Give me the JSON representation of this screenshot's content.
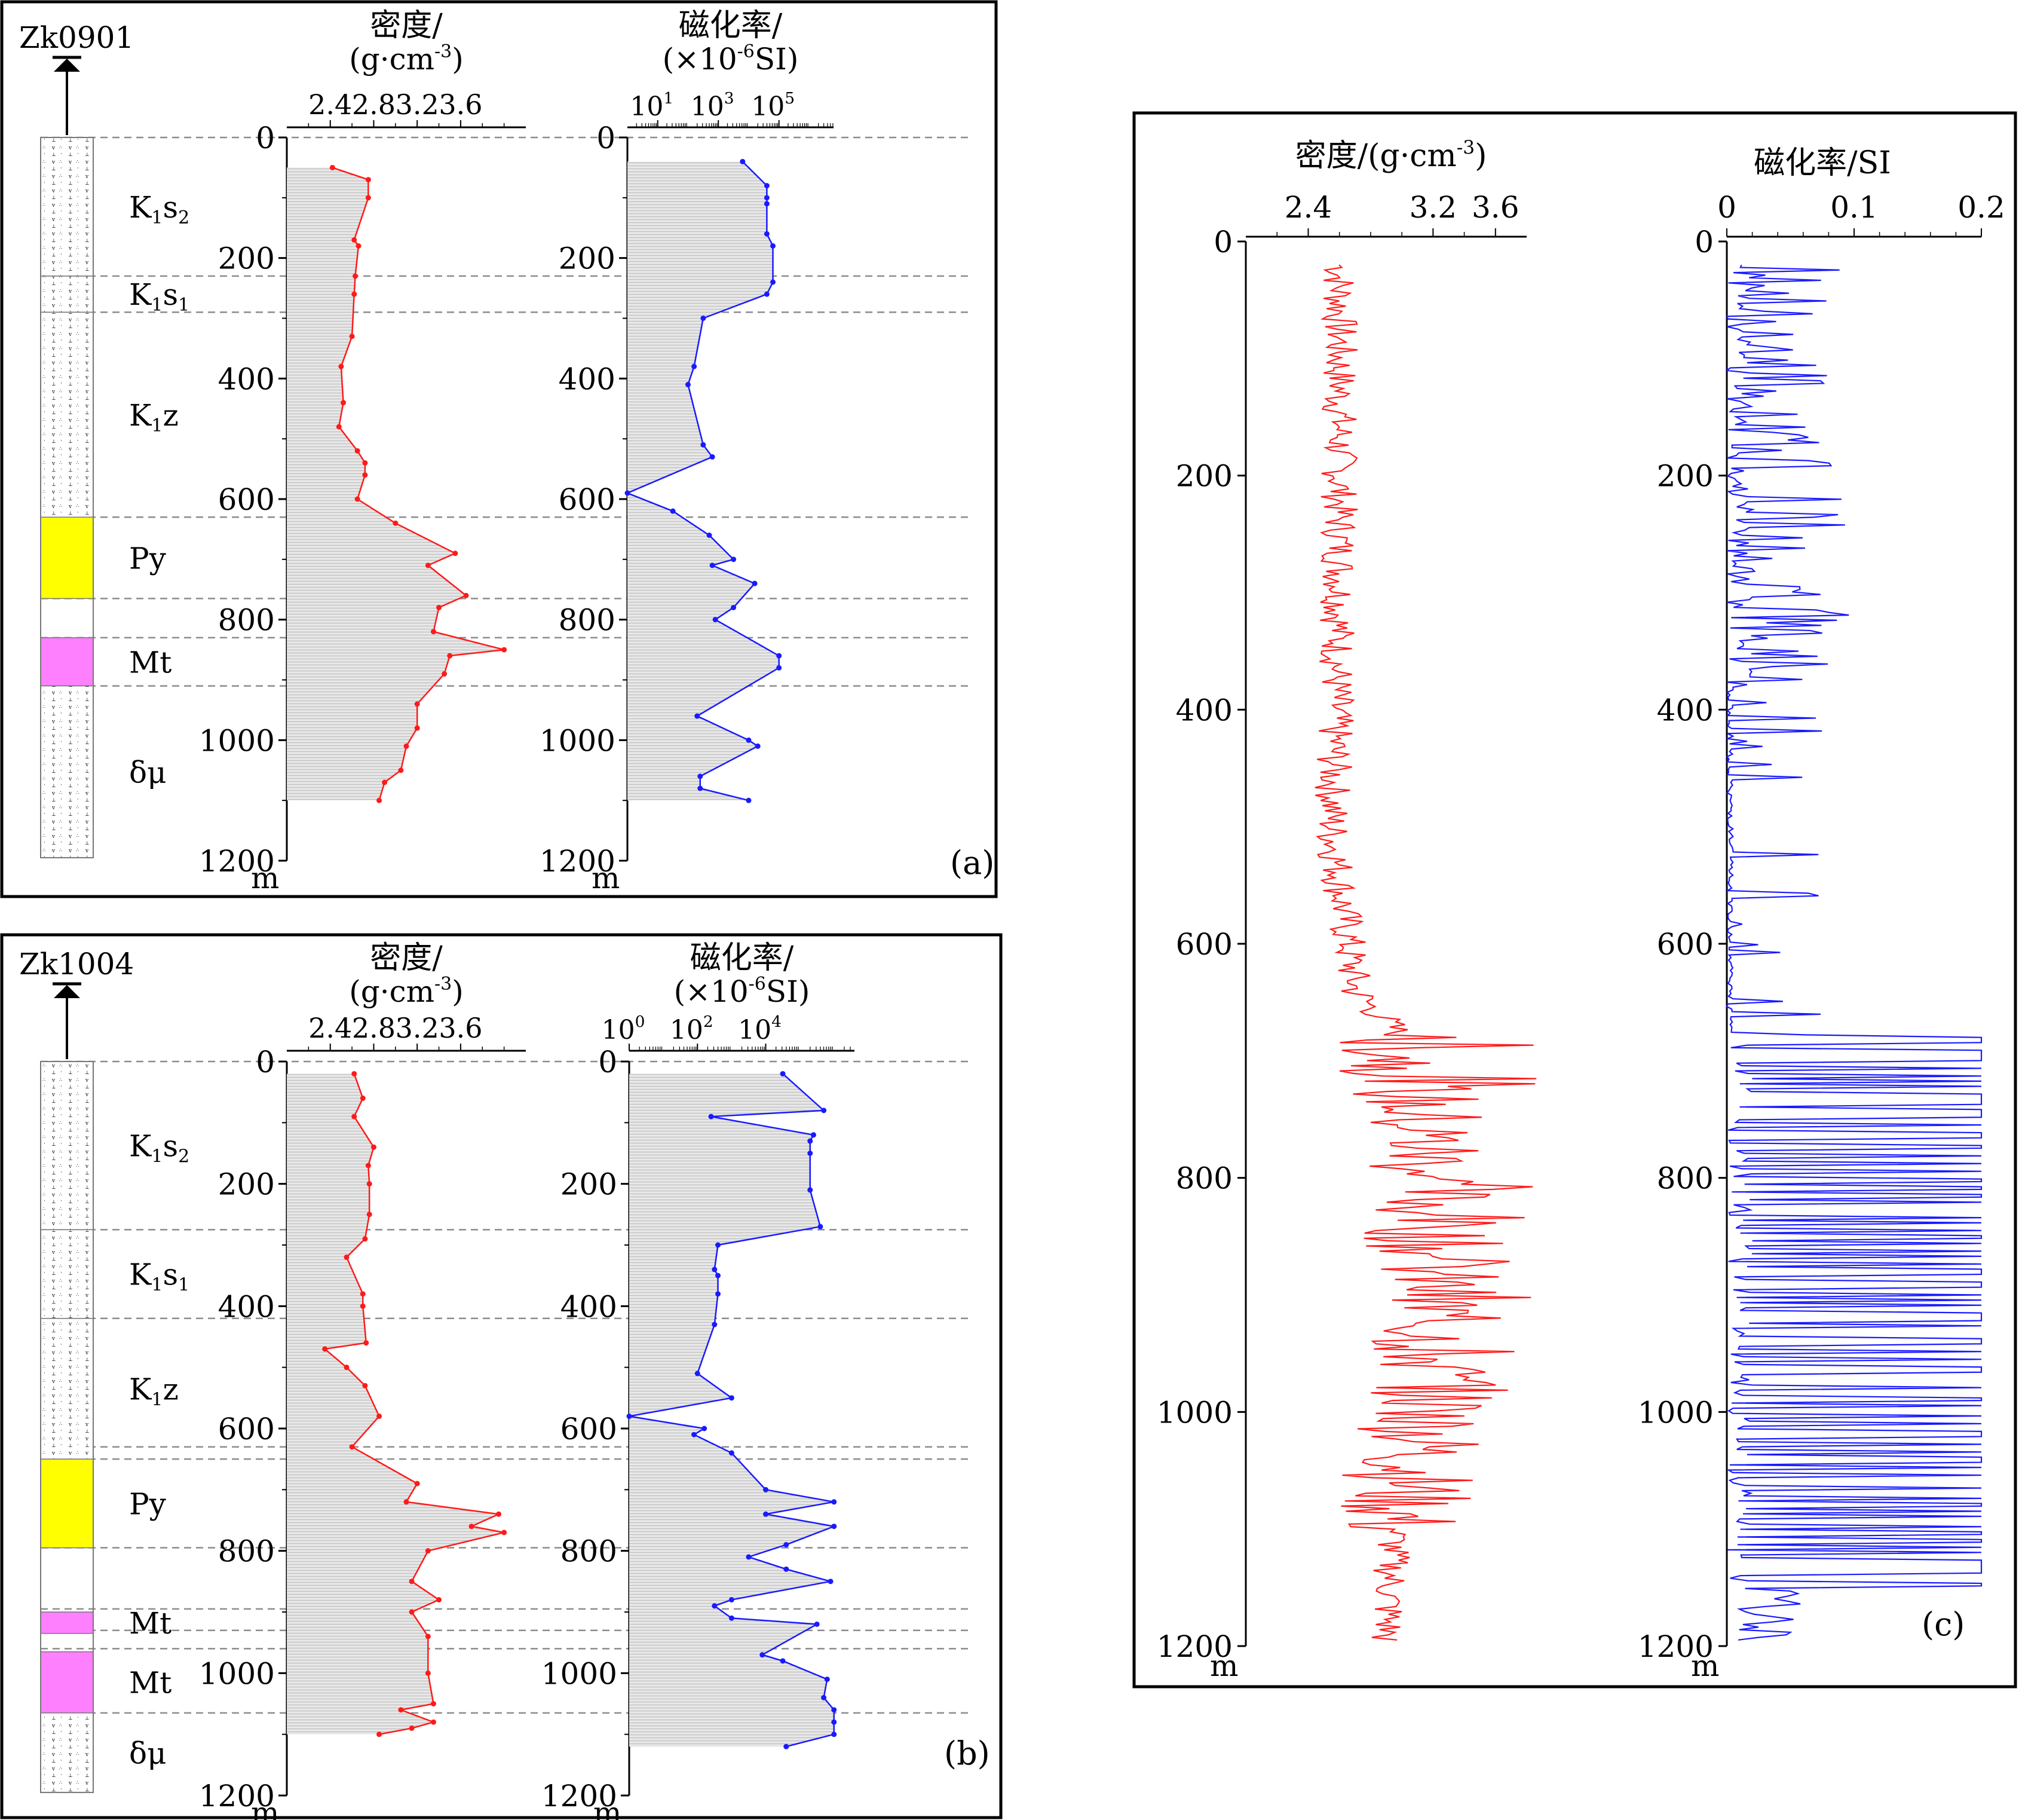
{
  "figure": {
    "labels": {
      "a": "(a)",
      "b": "(b)",
      "c": "(c)"
    },
    "unit_m": "m"
  },
  "colors": {
    "density_line": "#ff1a1a",
    "suscept_line": "#1a1aff",
    "fill_gray": "#d9d9d9",
    "pyrite": "#ffff00",
    "magnetite": "#ff80ff"
  },
  "chart_data": [
    {
      "type": "line",
      "panel": "(a)",
      "well": "Zk0901",
      "depth_label": "m",
      "depth_ticks": [
        "0",
        "200",
        "400",
        "600",
        "800",
        "1000",
        "1200"
      ],
      "ylim": [
        0,
        1200
      ],
      "strata": [
        {
          "name": "K1s2",
          "sub": "2",
          "top": 0,
          "base": 230,
          "color": "none"
        },
        {
          "name": "K1s1",
          "sub": "1",
          "top": 230,
          "base": 290,
          "color": "none"
        },
        {
          "name": "K1z",
          "sub": "",
          "top": 290,
          "base": 630,
          "color": "none"
        },
        {
          "name": "Py",
          "top": 630,
          "base": 765,
          "color": "#ffff00"
        },
        {
          "name": "Mt",
          "top": 830,
          "base": 910,
          "color": "#ff80ff"
        },
        {
          "name": "δμ",
          "top": 910,
          "base": 1195,
          "color": "none"
        }
      ],
      "boundaries": [
        0,
        230,
        290,
        630,
        765,
        830,
        910
      ],
      "density": {
        "title": "密度/",
        "unit": "(g·cm-3)",
        "unit_sup": "-3",
        "tick_labels": [
          "2.4",
          "2.8",
          "3.2",
          "3.6"
        ],
        "xlim": [
          2.0,
          4.2
        ],
        "depth": [
          50,
          70,
          100,
          170,
          180,
          230,
          260,
          330,
          380,
          440,
          480,
          520,
          540,
          560,
          600,
          640,
          690,
          710,
          760,
          780,
          820,
          850,
          860,
          890,
          940,
          980,
          1010,
          1050,
          1070,
          1100
        ],
        "values": [
          2.42,
          2.75,
          2.75,
          2.62,
          2.66,
          2.63,
          2.62,
          2.6,
          2.5,
          2.52,
          2.48,
          2.65,
          2.72,
          2.72,
          2.65,
          3.0,
          3.55,
          3.3,
          3.65,
          3.4,
          3.35,
          4.0,
          3.5,
          3.45,
          3.2,
          3.2,
          3.1,
          3.05,
          2.9,
          2.85
        ]
      },
      "susceptibility": {
        "title": "磁化率/",
        "unit": "(×10-6SI)",
        "unit_sup": "-6",
        "tick_labels": [
          "10",
          "10",
          "10"
        ],
        "tick_exponents": [
          "1",
          "3",
          "5"
        ],
        "log_range": [
          0,
          6.8
        ],
        "depth": [
          40,
          80,
          100,
          110,
          160,
          180,
          240,
          260,
          300,
          380,
          410,
          510,
          530,
          590,
          620,
          660,
          700,
          710,
          740,
          780,
          800,
          860,
          880,
          960,
          1000,
          1010,
          1060,
          1080,
          1100
        ],
        "log_values": [
          3.8,
          4.6,
          4.6,
          4.6,
          4.6,
          4.8,
          4.8,
          4.6,
          2.5,
          2.2,
          2.0,
          2.5,
          2.8,
          0.0,
          1.5,
          2.7,
          3.5,
          2.8,
          4.2,
          3.5,
          2.9,
          5.0,
          5.0,
          2.3,
          4.0,
          4.3,
          2.4,
          2.4,
          4.0
        ]
      }
    },
    {
      "type": "line",
      "panel": "(b)",
      "well": "Zk1004",
      "depth_label": "m",
      "depth_ticks": [
        "0",
        "200",
        "400",
        "600",
        "800",
        "1000",
        "1200"
      ],
      "ylim": [
        0,
        1200
      ],
      "strata": [
        {
          "name": "K1s2",
          "sub": "2",
          "top": 0,
          "base": 275,
          "color": "none"
        },
        {
          "name": "K1s1",
          "sub": "1",
          "top": 275,
          "base": 420,
          "color": "none"
        },
        {
          "name": "K1z",
          "sub": "",
          "top": 420,
          "base": 650,
          "color": "none"
        },
        {
          "name": "Py",
          "top": 650,
          "base": 795,
          "color": "#ffff00"
        },
        {
          "name": "Mt",
          "top": 900,
          "base": 935,
          "color": "#ff80ff"
        },
        {
          "name": "Mt",
          "top": 965,
          "base": 1065,
          "color": "#ff80ff"
        },
        {
          "name": "δμ",
          "top": 1065,
          "base": 1195,
          "color": "none"
        }
      ],
      "boundaries": [
        0,
        275,
        420,
        630,
        650,
        795,
        895,
        930,
        960,
        1065
      ],
      "density": {
        "title": "密度/",
        "unit": "(g·cm-3)",
        "unit_sup": "-3",
        "tick_labels": [
          "2.4",
          "2.8",
          "3.2",
          "3.6"
        ],
        "xlim": [
          2.0,
          4.2
        ],
        "depth": [
          20,
          60,
          90,
          140,
          170,
          200,
          250,
          290,
          320,
          380,
          400,
          460,
          470,
          500,
          530,
          580,
          630,
          690,
          720,
          740,
          760,
          770,
          800,
          850,
          880,
          900,
          940,
          1000,
          1050,
          1060,
          1080,
          1090,
          1100
        ],
        "values": [
          2.62,
          2.7,
          2.62,
          2.8,
          2.75,
          2.76,
          2.76,
          2.72,
          2.55,
          2.7,
          2.7,
          2.73,
          2.35,
          2.55,
          2.72,
          2.85,
          2.6,
          3.2,
          3.1,
          3.95,
          3.7,
          4.0,
          3.3,
          3.15,
          3.4,
          3.15,
          3.3,
          3.3,
          3.35,
          3.05,
          3.35,
          3.15,
          2.85
        ]
      },
      "susceptibility": {
        "title": "磁化率/",
        "unit": "(×10-6SI)",
        "unit_sup": "-6",
        "tick_labels": [
          "10",
          "10",
          "10"
        ],
        "tick_exponents": [
          "0",
          "2",
          "4"
        ],
        "log_range": [
          0,
          6.6
        ],
        "depth": [
          20,
          80,
          90,
          120,
          130,
          150,
          210,
          270,
          300,
          340,
          350,
          380,
          430,
          510,
          550,
          580,
          600,
          610,
          640,
          700,
          720,
          740,
          760,
          790,
          810,
          830,
          850,
          880,
          890,
          910,
          920,
          970,
          980,
          1010,
          1040,
          1060,
          1080,
          1100,
          1120
        ],
        "log_values": [
          4.5,
          5.7,
          2.4,
          5.4,
          5.3,
          5.3,
          5.3,
          5.6,
          2.6,
          2.5,
          2.6,
          2.6,
          2.5,
          2.0,
          3.0,
          0.0,
          2.2,
          1.9,
          3.0,
          4.0,
          6.0,
          4.0,
          6.0,
          4.6,
          3.5,
          4.6,
          5.9,
          3.0,
          2.5,
          3.0,
          5.5,
          3.9,
          4.5,
          5.8,
          5.7,
          6.0,
          6.0,
          6.0,
          4.6
        ]
      }
    },
    {
      "type": "line",
      "panel": "(c)",
      "depth_label": "m",
      "depth_ticks": [
        "0",
        "200",
        "400",
        "600",
        "800",
        "1000",
        "1200"
      ],
      "ylim": [
        0,
        1200
      ],
      "density": {
        "title": "密度/(g·cm-3)",
        "unit_sup": "-3",
        "tick_labels": [
          "2.4",
          "3.2",
          "3.6"
        ],
        "xlim": [
          2.0,
          3.8
        ],
        "profile": [
          [
            0,
            2.6
          ],
          [
            100,
            2.6
          ],
          [
            300,
            2.6
          ],
          [
            500,
            2.55
          ],
          [
            640,
            2.7
          ],
          [
            680,
            3.0
          ],
          [
            800,
            3.2
          ],
          [
            1000,
            3.2
          ],
          [
            1100,
            2.95
          ],
          [
            1200,
            2.9
          ]
        ]
      },
      "susceptibility": {
        "title": "磁化率/SI",
        "tick_labels": [
          "0",
          "0.1",
          "0.2"
        ],
        "xlim": [
          0,
          0.2
        ]
      }
    }
  ]
}
